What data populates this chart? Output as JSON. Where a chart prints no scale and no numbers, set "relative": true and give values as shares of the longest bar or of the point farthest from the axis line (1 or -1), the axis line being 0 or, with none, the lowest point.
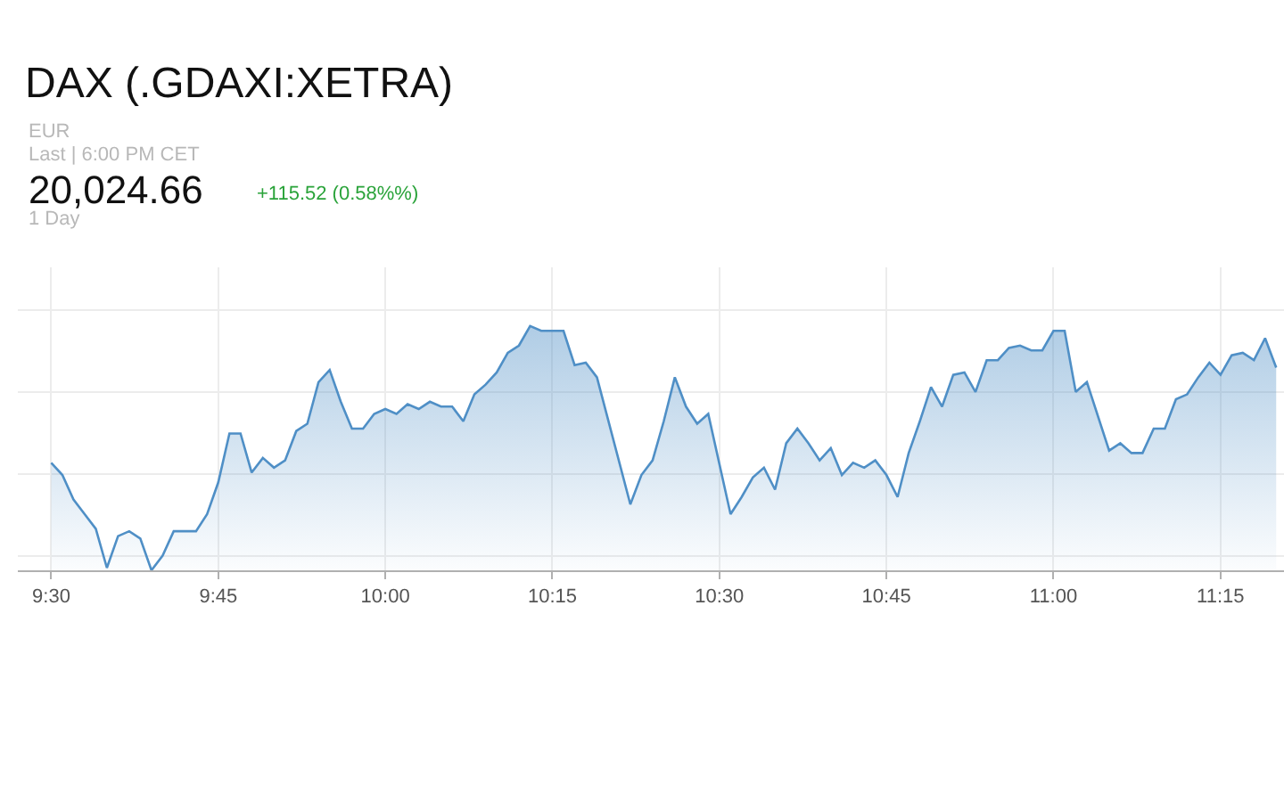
{
  "chart_data": {
    "type": "area",
    "title": "DAX (.GDAXI:XETRA)",
    "annotations": [
      "EUR",
      "Last | 6:00 PM CET",
      "20,024.66",
      "+115.52 (0.58%%)",
      "1 Day"
    ],
    "relative": true,
    "grid": true,
    "marker": "none",
    "line_style": "solid",
    "xlim": [
      9.45,
      11.345
    ],
    "xticks": [
      {
        "value": 9.5,
        "label": "9:30"
      },
      {
        "value": 9.75,
        "label": "9:45"
      },
      {
        "value": 10,
        "label": "10:00"
      },
      {
        "value": 10.25,
        "label": "10:15"
      },
      {
        "value": 10.5,
        "label": "10:30"
      },
      {
        "value": 10.75,
        "label": "10:45"
      },
      {
        "value": 11,
        "label": "11:00"
      },
      {
        "value": 11.25,
        "label": "11:15"
      }
    ],
    "x": [
      9.5,
      9.5167,
      9.5333,
      9.55,
      9.5667,
      9.5833,
      9.6,
      9.6167,
      9.6333,
      9.65,
      9.6667,
      9.6833,
      9.7,
      9.7167,
      9.7333,
      9.75,
      9.7667,
      9.7833,
      9.8,
      9.8167,
      9.8333,
      9.85,
      9.8667,
      9.8833,
      9.9,
      9.9167,
      9.9333,
      9.95,
      9.9667,
      9.9833,
      10,
      10.0167,
      10.0333,
      10.05,
      10.0667,
      10.0833,
      10.1,
      10.1167,
      10.1333,
      10.15,
      10.1667,
      10.1833,
      10.2,
      10.2167,
      10.2333,
      10.25,
      10.2667,
      10.2833,
      10.3,
      10.3167,
      10.3667,
      10.3833,
      10.4,
      10.4167,
      10.4333,
      10.45,
      10.4667,
      10.4833,
      10.5167,
      10.5333,
      10.55,
      10.5667,
      10.5833,
      10.6,
      10.6167,
      10.6333,
      10.65,
      10.6667,
      10.6833,
      10.7,
      10.7167,
      10.7333,
      10.75,
      10.7667,
      10.7833,
      10.8,
      10.8167,
      10.8333,
      10.85,
      10.8667,
      10.8833,
      10.9,
      10.9167,
      10.9333,
      10.95,
      10.9667,
      10.9833,
      11,
      11.0167,
      11.0333,
      11.05,
      11.0833,
      11.1,
      11.1167,
      11.1333,
      11.15,
      11.1667,
      11.1833,
      11.2,
      11.2167,
      11.2333,
      11.25,
      11.2667,
      11.2833,
      11.3,
      11.3167,
      11.3333
    ],
    "series": [
      {
        "color": "#4f8fc6",
        "values": [
          0.44,
          0.39,
          0.29,
          0.23,
          0.17,
          0.01,
          0.14,
          0.16,
          0.13,
          0,
          0.06,
          0.16,
          0.16,
          0.16,
          0.23,
          0.36,
          0.56,
          0.56,
          0.4,
          0.46,
          0.42,
          0.45,
          0.57,
          0.6,
          0.77,
          0.82,
          0.69,
          0.58,
          0.58,
          0.64,
          0.66,
          0.64,
          0.68,
          0.66,
          0.69,
          0.67,
          0.67,
          0.61,
          0.72,
          0.76,
          0.81,
          0.89,
          0.92,
          1,
          0.98,
          0.98,
          0.98,
          0.84,
          0.85,
          0.79,
          0.27,
          0.39,
          0.45,
          0.61,
          0.79,
          0.67,
          0.6,
          0.64,
          0.23,
          0.3,
          0.38,
          0.42,
          0.33,
          0.52,
          0.58,
          0.52,
          0.45,
          0.5,
          0.39,
          0.44,
          0.42,
          0.45,
          0.39,
          0.3,
          0.48,
          0.61,
          0.75,
          0.67,
          0.8,
          0.81,
          0.73,
          0.86,
          0.86,
          0.91,
          0.92,
          0.9,
          0.9,
          0.98,
          0.98,
          0.73,
          0.77,
          0.49,
          0.52,
          0.48,
          0.48,
          0.58,
          0.58,
          0.7,
          0.72,
          0.79,
          0.85,
          0.8,
          0.88,
          0.89,
          0.86,
          0.95,
          0.83
        ]
      }
    ]
  }
}
